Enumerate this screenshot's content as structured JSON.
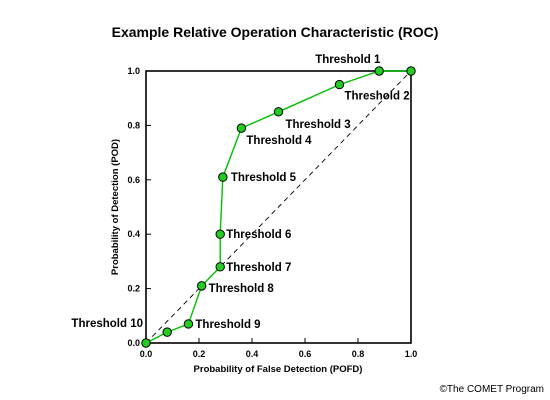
{
  "chart_data": {
    "type": "line",
    "title": "Example Relative Operation Characteristic (ROC)",
    "xlabel": "Probability of False Detection (POFD)",
    "ylabel": "Probability of Detection (POD)",
    "xlim": [
      0,
      1
    ],
    "ylim": [
      0,
      1
    ],
    "x_ticks": [
      "0.0",
      "0.2",
      "0.4",
      "0.6",
      "0.8",
      "1.0"
    ],
    "y_ticks": [
      "0.0",
      "0.2",
      "0.4",
      "0.6",
      "0.8",
      "1.0"
    ],
    "grid": false,
    "series": [
      {
        "color": "#00c000",
        "points": [
          {
            "label": "",
            "x": 1.0,
            "y": 1.0
          },
          {
            "label": "Threshold 1",
            "x": 0.88,
            "y": 1.0
          },
          {
            "label": "Threshold 2",
            "x": 0.73,
            "y": 0.95
          },
          {
            "label": "Threshold 3",
            "x": 0.5,
            "y": 0.85
          },
          {
            "label": "Threshold 4",
            "x": 0.36,
            "y": 0.79
          },
          {
            "label": "Threshold 5",
            "x": 0.29,
            "y": 0.61
          },
          {
            "label": "Threshold 6",
            "x": 0.28,
            "y": 0.4
          },
          {
            "label": "Threshold 7",
            "x": 0.28,
            "y": 0.28
          },
          {
            "label": "Threshold 8",
            "x": 0.21,
            "y": 0.21
          },
          {
            "label": "Threshold 9",
            "x": 0.16,
            "y": 0.07
          },
          {
            "label": "",
            "x": 0.08,
            "y": 0.04
          },
          {
            "label": "Threshold 10",
            "x": 0.0,
            "y": 0.0
          }
        ]
      }
    ],
    "reference_line": {
      "from": [
        0,
        0
      ],
      "to": [
        1,
        1
      ],
      "style": "dashed"
    }
  },
  "credit": "©The COMET Program"
}
